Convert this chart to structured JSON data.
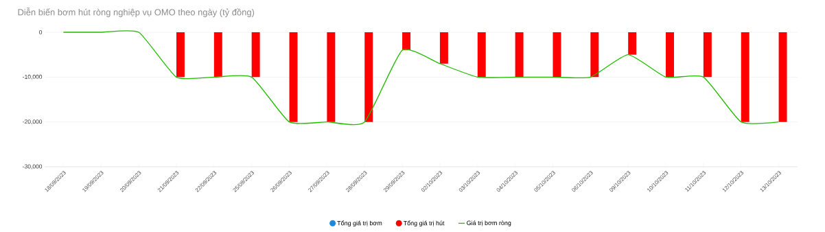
{
  "chart_data": {
    "type": "bar",
    "title": "Diễn biến bơm hút ròng nghiệp vụ OMO theo ngày (tỷ đồng)",
    "categories": [
      "18/09/2023",
      "19/09/2023",
      "20/09/2023",
      "21/09/2023",
      "22/09/2023",
      "25/09/2023",
      "26/09/2023",
      "27/09/2023",
      "28/09/2023",
      "29/09/2023",
      "02/10/2023",
      "03/10/2023",
      "04/10/2023",
      "05/10/2023",
      "06/10/2023",
      "09/10/2023",
      "10/10/2023",
      "11/10/2023",
      "12/10/2023",
      "13/10/2023"
    ],
    "series": [
      {
        "name": "Tổng giá trị bơm",
        "color": "#1e88d8",
        "values": [
          0,
          0,
          0,
          0,
          0,
          0,
          0,
          0,
          0,
          0,
          0,
          0,
          0,
          0,
          0,
          0,
          0,
          0,
          0,
          0
        ]
      },
      {
        "name": "Tổng giá trị hút",
        "color": "#ff0000",
        "values": [
          0,
          0,
          0,
          -10000,
          -10000,
          -10000,
          -20000,
          -20000,
          -20000,
          -4000,
          -7000,
          -10000,
          -10000,
          -10000,
          -10000,
          -5000,
          -10000,
          -10000,
          -20000,
          -20000
        ]
      },
      {
        "name": "Giá trị bơm ròng",
        "type": "line",
        "color": "#22bb00",
        "values": [
          0,
          0,
          0,
          -10000,
          -10000,
          -10000,
          -20000,
          -20000,
          -20000,
          -4000,
          -7000,
          -10000,
          -10000,
          -10000,
          -10000,
          -5000,
          -10000,
          -10000,
          -20000,
          -20000
        ]
      }
    ],
    "ylim": [
      -30000,
      0
    ],
    "yticks": [
      0,
      {
        "value": -10000,
        "label": "-10,000"
      },
      {
        "value": -20000,
        "label": "-20,000"
      },
      {
        "value": -30000,
        "label": "-30,000"
      }
    ],
    "grid": "y",
    "legend": "bottom"
  }
}
